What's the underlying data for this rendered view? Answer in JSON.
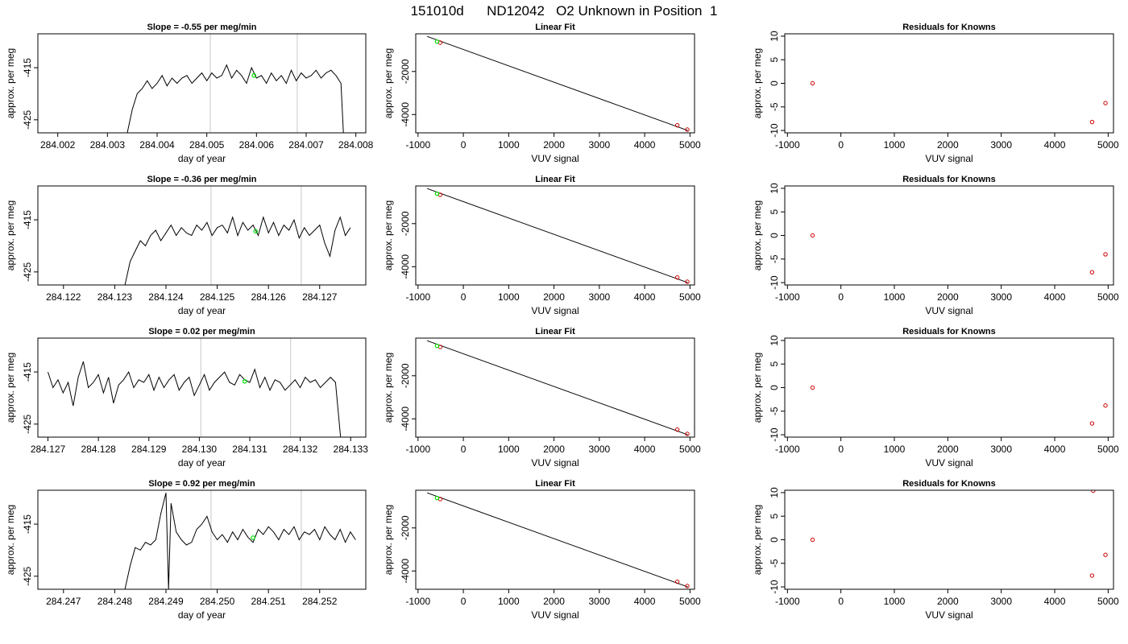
{
  "page_title": "151010d      ND12042   O2 Unknown in Position  1",
  "chart_data": [
    {
      "type": "line",
      "row": 0,
      "col": 0,
      "title": "Slope =  -0.55  per meg/min",
      "xlabel": "day of year",
      "ylabel": "approx. per meg",
      "xlim": [
        284.0016,
        284.0082
      ],
      "ylim": [
        -427.5,
        -408.5
      ],
      "xticks": [
        284.002,
        284.003,
        284.004,
        284.005,
        284.006,
        284.007,
        284.008
      ],
      "xticklabels": [
        "284.002",
        "284.003",
        "284.004",
        "284.005",
        "284.006",
        "284.007",
        "284.008"
      ],
      "yticks": [
        -415,
        -425
      ],
      "yticklabels": [
        "-415",
        "-425"
      ],
      "vlines": [
        284.00507,
        284.00682
      ],
      "x": [
        284.0034,
        284.0035,
        284.0036,
        284.0037,
        284.0038,
        284.0039,
        284.004,
        284.0041,
        284.0042,
        284.0043,
        284.0044,
        284.0045,
        284.0046,
        284.0047,
        284.0048,
        284.0049,
        284.005,
        284.0051,
        284.0052,
        284.0053,
        284.0054,
        284.0055,
        284.0056,
        284.0057,
        284.0058,
        284.0059,
        284.006,
        284.0061,
        284.0062,
        284.0063,
        284.0064,
        284.0065,
        284.0066,
        284.0067,
        284.0068,
        284.0069,
        284.007,
        284.0071,
        284.0072,
        284.0073,
        284.0074,
        284.0075,
        284.0076,
        284.0077,
        284.00775
      ],
      "y": [
        -427.5,
        -423,
        -420,
        -419,
        -417.5,
        -419,
        -418,
        -416.5,
        -418.5,
        -417,
        -418,
        -417,
        -416.5,
        -418,
        -417,
        -416,
        -417.5,
        -416,
        -417,
        -416.5,
        -414.5,
        -417,
        -415.5,
        -416.5,
        -418,
        -415,
        -417,
        -416.5,
        -418,
        -416,
        -417.5,
        -416.5,
        -418,
        -415.5,
        -417.5,
        -416,
        -417,
        -416.5,
        -415.5,
        -417,
        -416,
        -415.5,
        -416.5,
        -418,
        -427.5
      ],
      "markers": [
        {
          "x": 284.00595,
          "y": -416.5,
          "color": "#00dd00"
        }
      ]
    },
    {
      "type": "scatter",
      "row": 0,
      "col": 1,
      "title": "Linear Fit",
      "xlabel": "VUV signal",
      "ylabel": "approx. per meg",
      "xlim": [
        -1050,
        5100
      ],
      "ylim": [
        -4850,
        -250
      ],
      "xticks": [
        -1000,
        0,
        1000,
        2000,
        3000,
        4000,
        5000
      ],
      "xticklabels": [
        "-1000",
        "0",
        "1000",
        "2000",
        "3000",
        "4000",
        "5000"
      ],
      "yticks": [
        -2000,
        -4000
      ],
      "yticklabels": [
        "-2000",
        "-4000"
      ],
      "fit_line": [
        [
          -800,
          -370
        ],
        [
          4950,
          -4740
        ]
      ],
      "points": [
        {
          "x": -510,
          "y": -660,
          "color": "#cc0000"
        },
        {
          "x": 4720,
          "y": -4500,
          "color": "#cc0000"
        },
        {
          "x": 4940,
          "y": -4700,
          "color": "#cc0000"
        }
      ],
      "markers": [
        {
          "x": -580,
          "y": -610,
          "color": "#00dd00"
        }
      ]
    },
    {
      "type": "scatter",
      "row": 0,
      "col": 2,
      "title": "Residuals for Knowns",
      "xlabel": "VUV signal",
      "ylabel": "approx. per meg",
      "xlim": [
        -1050,
        5100
      ],
      "ylim": [
        -10.5,
        10.5
      ],
      "xticks": [
        -1000,
        0,
        1000,
        2000,
        3000,
        4000,
        5000
      ],
      "xticklabels": [
        "-1000",
        "0",
        "1000",
        "2000",
        "3000",
        "4000",
        "5000"
      ],
      "yticks": [
        10,
        5,
        0,
        -5,
        -10
      ],
      "yticklabels": [
        "10",
        "5",
        "0",
        "-5",
        "-10"
      ],
      "points": [
        {
          "x": -530,
          "y": 0,
          "color": "#cc0000"
        },
        {
          "x": 4700,
          "y": -8.2,
          "color": "#cc0000"
        },
        {
          "x": 4950,
          "y": -4.2,
          "color": "#cc0000"
        }
      ]
    },
    {
      "type": "line",
      "row": 1,
      "col": 0,
      "title": "Slope =  -0.36  per meg/min",
      "xlabel": "day of year",
      "ylabel": "approx. per meg",
      "xlim": [
        284.1215,
        284.1279
      ],
      "ylim": [
        -427.5,
        -408.5
      ],
      "xticks": [
        284.122,
        284.123,
        284.124,
        284.125,
        284.126,
        284.127
      ],
      "xticklabels": [
        "284.122",
        "284.123",
        "284.124",
        "284.125",
        "284.126",
        "284.127"
      ],
      "yticks": [
        -415,
        -425
      ],
      "yticklabels": [
        "-415",
        "-425"
      ],
      "vlines": [
        284.12488,
        284.12664
      ],
      "x": [
        284.1232,
        284.1233,
        284.1234,
        284.1235,
        284.1236,
        284.1237,
        284.1238,
        284.1239,
        284.124,
        284.1241,
        284.1242,
        284.1243,
        284.1244,
        284.1245,
        284.1246,
        284.1247,
        284.1248,
        284.1249,
        284.125,
        284.1251,
        284.1252,
        284.1253,
        284.1254,
        284.1255,
        284.1256,
        284.1257,
        284.1258,
        284.1259,
        284.126,
        284.1261,
        284.1262,
        284.1263,
        284.1264,
        284.1265,
        284.1266,
        284.1267,
        284.1268,
        284.1269,
        284.127,
        284.1271,
        284.1272,
        284.1273,
        284.1274,
        284.1275,
        284.1276
      ],
      "y": [
        -427.5,
        -423,
        -421,
        -419,
        -420,
        -418,
        -417,
        -419,
        -417.5,
        -416,
        -418,
        -416.5,
        -417.5,
        -418,
        -416,
        -417,
        -415.5,
        -418,
        -416.5,
        -416,
        -417.5,
        -414.5,
        -418,
        -415.5,
        -417,
        -416,
        -418,
        -414.5,
        -417.5,
        -415.5,
        -418,
        -416,
        -417,
        -415,
        -418.5,
        -416.5,
        -418,
        -417,
        -416,
        -419.5,
        -422,
        -417,
        -414.5,
        -418,
        -416.5
      ],
      "markers": [
        {
          "x": 284.12575,
          "y": -417.2,
          "color": "#00dd00"
        }
      ]
    },
    {
      "type": "scatter",
      "row": 1,
      "col": 1,
      "title": "Linear Fit",
      "xlabel": "VUV signal",
      "ylabel": "approx. per meg",
      "xlim": [
        -1050,
        5100
      ],
      "ylim": [
        -4850,
        -250
      ],
      "xticks": [
        -1000,
        0,
        1000,
        2000,
        3000,
        4000,
        5000
      ],
      "xticklabels": [
        "-1000",
        "0",
        "1000",
        "2000",
        "3000",
        "4000",
        "5000"
      ],
      "yticks": [
        -2000,
        -4000
      ],
      "yticklabels": [
        "-2000",
        "-4000"
      ],
      "fit_line": [
        [
          -800,
          -370
        ],
        [
          4950,
          -4740
        ]
      ],
      "points": [
        {
          "x": -510,
          "y": -660,
          "color": "#cc0000"
        },
        {
          "x": 4720,
          "y": -4500,
          "color": "#cc0000"
        },
        {
          "x": 4940,
          "y": -4700,
          "color": "#cc0000"
        }
      ],
      "markers": [
        {
          "x": -580,
          "y": -610,
          "color": "#00dd00"
        }
      ]
    },
    {
      "type": "scatter",
      "row": 1,
      "col": 2,
      "title": "Residuals for Knowns",
      "xlabel": "VUV signal",
      "ylabel": "approx. per meg",
      "xlim": [
        -1050,
        5100
      ],
      "ylim": [
        -10.5,
        10.5
      ],
      "xticks": [
        -1000,
        0,
        1000,
        2000,
        3000,
        4000,
        5000
      ],
      "xticklabels": [
        "-1000",
        "0",
        "1000",
        "2000",
        "3000",
        "4000",
        "5000"
      ],
      "yticks": [
        10,
        5,
        0,
        -5,
        -10
      ],
      "yticklabels": [
        "10",
        "5",
        "0",
        "-5",
        "-10"
      ],
      "points": [
        {
          "x": -530,
          "y": 0,
          "color": "#cc0000"
        },
        {
          "x": 4700,
          "y": -7.8,
          "color": "#cc0000"
        },
        {
          "x": 4950,
          "y": -4.0,
          "color": "#cc0000"
        }
      ]
    },
    {
      "type": "line",
      "row": 2,
      "col": 0,
      "title": "Slope =  0.02  per meg/min",
      "xlabel": "day of year",
      "ylabel": "approx. per meg",
      "xlim": [
        284.1268,
        284.1333
      ],
      "ylim": [
        -427.5,
        -408.5
      ],
      "xticks": [
        284.127,
        284.128,
        284.129,
        284.13,
        284.131,
        284.132,
        284.133
      ],
      "xticklabels": [
        "284.127",
        "284.128",
        "284.129",
        "284.130",
        "284.131",
        "284.132",
        "284.133"
      ],
      "yticks": [
        -415,
        -425
      ],
      "yticklabels": [
        "-415",
        "-425"
      ],
      "vlines": [
        284.13003,
        284.13181
      ],
      "x": [
        284.127,
        284.1271,
        284.1272,
        284.1273,
        284.1274,
        284.1275,
        284.1276,
        284.1277,
        284.1278,
        284.1279,
        284.128,
        284.1281,
        284.1282,
        284.1283,
        284.1284,
        284.1285,
        284.1286,
        284.1287,
        284.1288,
        284.1289,
        284.129,
        284.1291,
        284.1292,
        284.1293,
        284.1294,
        284.1295,
        284.1296,
        284.1297,
        284.1298,
        284.1299,
        284.13,
        284.1301,
        284.1302,
        284.1303,
        284.1304,
        284.1305,
        284.1306,
        284.1307,
        284.1308,
        284.1309,
        284.131,
        284.1311,
        284.1312,
        284.1313,
        284.1314,
        284.1315,
        284.1316,
        284.1317,
        284.1318,
        284.1319,
        284.132,
        284.1321,
        284.1322,
        284.1323,
        284.1324,
        284.1325,
        284.1326,
        284.1327,
        284.1328
      ],
      "y": [
        -415,
        -418,
        -416.5,
        -419,
        -417,
        -421.5,
        -416,
        -413,
        -418,
        -417,
        -415.5,
        -419,
        -416,
        -421,
        -417.5,
        -416.5,
        -415,
        -418,
        -416.5,
        -417,
        -415.5,
        -418.5,
        -416,
        -418,
        -416.5,
        -415.5,
        -418.5,
        -417,
        -416,
        -419.5,
        -417.5,
        -415.5,
        -418.5,
        -417,
        -416,
        -415,
        -417,
        -417.5,
        -415.5,
        -416.5,
        -417,
        -414.5,
        -418,
        -416,
        -418.5,
        -416.5,
        -417,
        -418.5,
        -417.5,
        -416.5,
        -418,
        -416,
        -417,
        -416.5,
        -418,
        -417,
        -416,
        -417,
        -427.5
      ],
      "markers": [
        {
          "x": 284.1309,
          "y": -416.8,
          "color": "#00dd00"
        }
      ]
    },
    {
      "type": "scatter",
      "row": 2,
      "col": 1,
      "title": "Linear Fit",
      "xlabel": "VUV signal",
      "ylabel": "approx. per meg",
      "xlim": [
        -1050,
        5100
      ],
      "ylim": [
        -4850,
        -250
      ],
      "xticks": [
        -1000,
        0,
        1000,
        2000,
        3000,
        4000,
        5000
      ],
      "xticklabels": [
        "-1000",
        "0",
        "1000",
        "2000",
        "3000",
        "4000",
        "5000"
      ],
      "yticks": [
        -2000,
        -4000
      ],
      "yticklabels": [
        "-2000",
        "-4000"
      ],
      "fit_line": [
        [
          -800,
          -370
        ],
        [
          4950,
          -4740
        ]
      ],
      "points": [
        {
          "x": -510,
          "y": -660,
          "color": "#cc0000"
        },
        {
          "x": 4720,
          "y": -4500,
          "color": "#cc0000"
        },
        {
          "x": 4940,
          "y": -4700,
          "color": "#cc0000"
        }
      ],
      "markers": [
        {
          "x": -580,
          "y": -610,
          "color": "#00dd00"
        }
      ]
    },
    {
      "type": "scatter",
      "row": 2,
      "col": 2,
      "title": "Residuals for Knowns",
      "xlabel": "VUV signal",
      "ylabel": "approx. per meg",
      "xlim": [
        -1050,
        5100
      ],
      "ylim": [
        -10.5,
        10.5
      ],
      "xticks": [
        -1000,
        0,
        1000,
        2000,
        3000,
        4000,
        5000
      ],
      "xticklabels": [
        "-1000",
        "0",
        "1000",
        "2000",
        "3000",
        "4000",
        "5000"
      ],
      "yticks": [
        10,
        5,
        0,
        -5,
        -10
      ],
      "yticklabels": [
        "10",
        "5",
        "0",
        "-5",
        "-10"
      ],
      "points": [
        {
          "x": -530,
          "y": 0,
          "color": "#cc0000"
        },
        {
          "x": 4700,
          "y": -7.6,
          "color": "#cc0000"
        },
        {
          "x": 4950,
          "y": -3.8,
          "color": "#cc0000"
        }
      ]
    },
    {
      "type": "line",
      "row": 3,
      "col": 0,
      "title": "Slope =  0.92  per meg/min",
      "xlabel": "day of year",
      "ylabel": "approx. per meg",
      "xlim": [
        284.2465,
        284.2529
      ],
      "ylim": [
        -427.5,
        -408.5
      ],
      "xticks": [
        284.247,
        284.248,
        284.249,
        284.25,
        284.251,
        284.252
      ],
      "xticklabels": [
        "284.247",
        "284.248",
        "284.249",
        "284.250",
        "284.251",
        "284.252"
      ],
      "yticks": [
        -415,
        -425
      ],
      "yticklabels": [
        "-415",
        "-425"
      ],
      "vlines": [
        284.24988,
        284.25164
      ],
      "x": [
        284.2482,
        284.2483,
        284.2484,
        284.2485,
        284.2486,
        284.2487,
        284.2488,
        284.2489,
        284.249,
        284.24905,
        284.2491,
        284.2492,
        284.2493,
        284.2494,
        284.2495,
        284.2496,
        284.2497,
        284.2498,
        284.2499,
        284.25,
        284.2501,
        284.2502,
        284.2503,
        284.2504,
        284.2505,
        284.2506,
        284.2507,
        284.2508,
        284.2509,
        284.251,
        284.2511,
        284.2512,
        284.2513,
        284.2514,
        284.2515,
        284.2516,
        284.2517,
        284.2518,
        284.2519,
        284.252,
        284.2521,
        284.2522,
        284.2523,
        284.2524,
        284.2525,
        284.2526,
        284.2527
      ],
      "y": [
        -427.5,
        -423,
        -419.5,
        -420,
        -418.5,
        -419,
        -418,
        -413,
        -409,
        -427.5,
        -411,
        -416.5,
        -418,
        -419,
        -418.5,
        -416,
        -415,
        -413.5,
        -416.5,
        -418,
        -417,
        -418.5,
        -416.5,
        -418,
        -416,
        -417.5,
        -418.5,
        -416,
        -417,
        -415.5,
        -416.5,
        -418,
        -416,
        -417,
        -415.5,
        -418,
        -416.5,
        -417,
        -416,
        -418,
        -415.5,
        -417,
        -418,
        -416,
        -418.5,
        -416.5,
        -418
      ],
      "markers": [
        {
          "x": 284.2507,
          "y": -417.6,
          "color": "#00dd00"
        }
      ]
    },
    {
      "type": "scatter",
      "row": 3,
      "col": 1,
      "title": "Linear Fit",
      "xlabel": "VUV signal",
      "ylabel": "approx. per meg",
      "xlim": [
        -1050,
        5100
      ],
      "ylim": [
        -4850,
        -250
      ],
      "xticks": [
        -1000,
        0,
        1000,
        2000,
        3000,
        4000,
        5000
      ],
      "xticklabels": [
        "-1000",
        "0",
        "1000",
        "2000",
        "3000",
        "4000",
        "5000"
      ],
      "yticks": [
        -2000,
        -4000
      ],
      "yticklabels": [
        "-2000",
        "-4000"
      ],
      "fit_line": [
        [
          -800,
          -370
        ],
        [
          4950,
          -4740
        ]
      ],
      "points": [
        {
          "x": -510,
          "y": -660,
          "color": "#cc0000"
        },
        {
          "x": 4720,
          "y": -4500,
          "color": "#cc0000"
        },
        {
          "x": 4940,
          "y": -4700,
          "color": "#cc0000"
        }
      ],
      "markers": [
        {
          "x": -580,
          "y": -610,
          "color": "#00dd00"
        }
      ]
    },
    {
      "type": "scatter",
      "row": 3,
      "col": 2,
      "title": "Residuals for Knowns",
      "xlabel": "VUV signal",
      "ylabel": "approx. per meg",
      "xlim": [
        -1050,
        5100
      ],
      "ylim": [
        -10.5,
        10.5
      ],
      "xticks": [
        -1000,
        0,
        1000,
        2000,
        3000,
        4000,
        5000
      ],
      "xticklabels": [
        "-1000",
        "0",
        "1000",
        "2000",
        "3000",
        "4000",
        "5000"
      ],
      "yticks": [
        10,
        5,
        0,
        -5,
        -10
      ],
      "yticklabels": [
        "10",
        "5",
        "0",
        "-5",
        "-10"
      ],
      "points": [
        {
          "x": -530,
          "y": 0,
          "color": "#cc0000"
        },
        {
          "x": 4720,
          "y": 10.4,
          "color": "#cc0000"
        },
        {
          "x": 4700,
          "y": -7.6,
          "color": "#cc0000"
        },
        {
          "x": 4950,
          "y": -3.2,
          "color": "#cc0000"
        }
      ]
    }
  ]
}
